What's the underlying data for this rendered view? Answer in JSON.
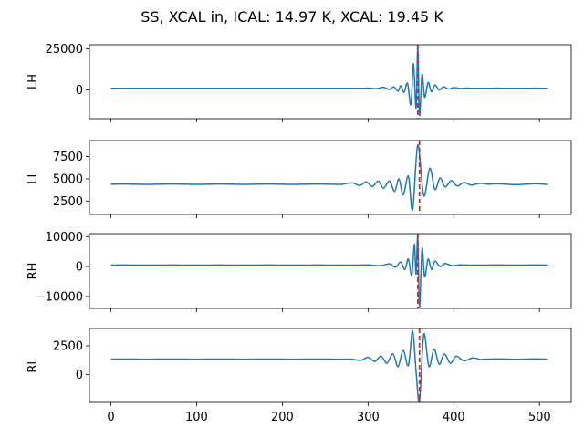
{
  "figure": {
    "title": "SS, XCAL in, ICAL: 14.97 K, XCAL: 19.45 K"
  },
  "chart_data": [
    {
      "type": "line",
      "ylabel": "LH",
      "xlim": [
        -25,
        537
      ],
      "ylim": [
        -17500,
        27500
      ],
      "yticks": [
        0,
        25000
      ],
      "ytick_labels": [
        "0",
        "25000"
      ],
      "xticks": [
        0,
        100,
        200,
        300,
        400,
        500
      ],
      "baseline": 1000,
      "line_color": "#1f77b4",
      "marker": {
        "x": 358,
        "color": "#d62728",
        "style": "dashed"
      },
      "fringe": [
        {
          "x": 300,
          "y": 1100
        },
        {
          "x": 310,
          "y": 800
        },
        {
          "x": 318,
          "y": 1600
        },
        {
          "x": 325,
          "y": 200
        },
        {
          "x": 330,
          "y": 1900
        },
        {
          "x": 335,
          "y": -800
        },
        {
          "x": 338,
          "y": 2600
        },
        {
          "x": 342,
          "y": -1500
        },
        {
          "x": 346,
          "y": 4000
        },
        {
          "x": 350,
          "y": -9000
        },
        {
          "x": 353,
          "y": 16000
        },
        {
          "x": 356,
          "y": -11000
        },
        {
          "x": 358,
          "y": 26000
        },
        {
          "x": 360,
          "y": -15500
        },
        {
          "x": 363,
          "y": 9500
        },
        {
          "x": 366,
          "y": -4500
        },
        {
          "x": 370,
          "y": 4500
        },
        {
          "x": 374,
          "y": -1200
        },
        {
          "x": 378,
          "y": 3000
        },
        {
          "x": 383,
          "y": 0
        },
        {
          "x": 388,
          "y": 1900
        },
        {
          "x": 394,
          "y": 500
        },
        {
          "x": 400,
          "y": 1400
        },
        {
          "x": 408,
          "y": 900
        },
        {
          "x": 416,
          "y": 1100
        }
      ]
    },
    {
      "type": "line",
      "ylabel": "LL",
      "xlim": [
        -25,
        537
      ],
      "ylim": [
        1000,
        9300
      ],
      "yticks": [
        2500,
        5000,
        7500
      ],
      "ytick_labels": [
        "2500",
        "5000",
        "7500"
      ],
      "xticks": [
        0,
        100,
        200,
        300,
        400,
        500
      ],
      "baseline": 4400,
      "line_color": "#1f77b4",
      "marker": {
        "x": 360,
        "color": "#d62728",
        "style": "dashed"
      },
      "fringe": [
        {
          "x": 270,
          "y": 4400
        },
        {
          "x": 282,
          "y": 4550
        },
        {
          "x": 290,
          "y": 4250
        },
        {
          "x": 298,
          "y": 4650
        },
        {
          "x": 305,
          "y": 4150
        },
        {
          "x": 312,
          "y": 4750
        },
        {
          "x": 318,
          "y": 3950
        },
        {
          "x": 325,
          "y": 4750
        },
        {
          "x": 331,
          "y": 3600
        },
        {
          "x": 336,
          "y": 5000
        },
        {
          "x": 341,
          "y": 3200
        },
        {
          "x": 347,
          "y": 5300
        },
        {
          "x": 352,
          "y": 1500
        },
        {
          "x": 358,
          "y": 8800
        },
        {
          "x": 365,
          "y": 3100
        },
        {
          "x": 372,
          "y": 6200
        },
        {
          "x": 378,
          "y": 3800
        },
        {
          "x": 384,
          "y": 5100
        },
        {
          "x": 390,
          "y": 4100
        },
        {
          "x": 397,
          "y": 4800
        },
        {
          "x": 404,
          "y": 4200
        },
        {
          "x": 412,
          "y": 4600
        },
        {
          "x": 420,
          "y": 4300
        },
        {
          "x": 430,
          "y": 4500
        },
        {
          "x": 440,
          "y": 4400
        }
      ]
    },
    {
      "type": "line",
      "ylabel": "RH",
      "xlim": [
        -25,
        537
      ],
      "ylim": [
        -14000,
        11000
      ],
      "yticks": [
        -10000,
        0,
        10000
      ],
      "ytick_labels": [
        "−10000",
        "0",
        "10000"
      ],
      "xticks": [
        0,
        100,
        200,
        300,
        400,
        500
      ],
      "baseline": 500,
      "line_color": "#1f77b4",
      "marker": {
        "x": 358,
        "color": "#d62728",
        "style": "dashed"
      },
      "fringe": [
        {
          "x": 300,
          "y": 550
        },
        {
          "x": 315,
          "y": 300
        },
        {
          "x": 325,
          "y": 900
        },
        {
          "x": 332,
          "y": -200
        },
        {
          "x": 338,
          "y": 1500
        },
        {
          "x": 343,
          "y": -1000
        },
        {
          "x": 347,
          "y": 2500
        },
        {
          "x": 351,
          "y": -3000
        },
        {
          "x": 354,
          "y": 7500
        },
        {
          "x": 356,
          "y": -2500
        },
        {
          "x": 358,
          "y": 10000
        },
        {
          "x": 360,
          "y": -13500
        },
        {
          "x": 363,
          "y": 6000
        },
        {
          "x": 366,
          "y": -3500
        },
        {
          "x": 370,
          "y": 2500
        },
        {
          "x": 374,
          "y": -1000
        },
        {
          "x": 378,
          "y": 1800
        },
        {
          "x": 384,
          "y": 0
        },
        {
          "x": 390,
          "y": 1000
        },
        {
          "x": 398,
          "y": 300
        },
        {
          "x": 408,
          "y": 600
        }
      ]
    },
    {
      "type": "line",
      "ylabel": "RL",
      "xlim": [
        -25,
        537
      ],
      "ylim": [
        -2400,
        4000
      ],
      "yticks": [
        0,
        2500
      ],
      "ytick_labels": [
        "0",
        "2500"
      ],
      "xticks": [
        0,
        100,
        200,
        300,
        400,
        500
      ],
      "xtick_labels": [
        "0",
        "100",
        "200",
        "300",
        "400",
        "500"
      ],
      "baseline": 1350,
      "line_color": "#1f77b4",
      "marker": {
        "x": 360,
        "color": "#d62728",
        "style": "dashed"
      },
      "fringe": [
        {
          "x": 280,
          "y": 1350
        },
        {
          "x": 292,
          "y": 1250
        },
        {
          "x": 300,
          "y": 1500
        },
        {
          "x": 308,
          "y": 1150
        },
        {
          "x": 315,
          "y": 1600
        },
        {
          "x": 322,
          "y": 1000
        },
        {
          "x": 329,
          "y": 1800
        },
        {
          "x": 335,
          "y": 700
        },
        {
          "x": 341,
          "y": 2100
        },
        {
          "x": 347,
          "y": 800
        },
        {
          "x": 352,
          "y": 3800
        },
        {
          "x": 356,
          "y": 300
        },
        {
          "x": 360,
          "y": -2300
        },
        {
          "x": 365,
          "y": 3500
        },
        {
          "x": 371,
          "y": 700
        },
        {
          "x": 377,
          "y": 2200
        },
        {
          "x": 383,
          "y": 900
        },
        {
          "x": 389,
          "y": 1800
        },
        {
          "x": 396,
          "y": 1000
        },
        {
          "x": 403,
          "y": 1600
        },
        {
          "x": 412,
          "y": 1200
        },
        {
          "x": 422,
          "y": 1450
        },
        {
          "x": 432,
          "y": 1300
        }
      ]
    }
  ]
}
